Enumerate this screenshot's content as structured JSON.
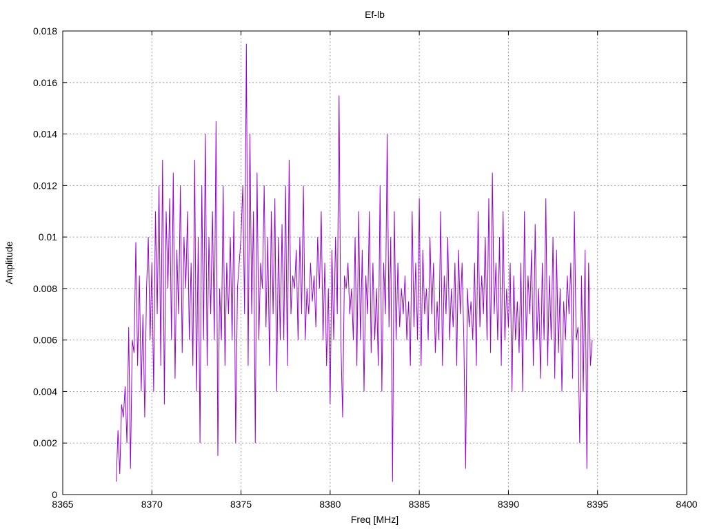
{
  "chart_data": {
    "type": "line",
    "title": "Ef-lb",
    "xlabel": "Freq [MHz]",
    "ylabel": "Amplitude",
    "xlim": [
      8365,
      8400
    ],
    "ylim": [
      0,
      0.018
    ],
    "x_ticks": [
      "8365",
      "8370",
      "8375",
      "8380",
      "8385",
      "8390",
      "8395",
      "8400"
    ],
    "y_ticks": [
      "0",
      "0.002",
      "0.004",
      "0.006",
      "0.008",
      "0.01",
      "0.012",
      "0.014",
      "0.016",
      "0.018"
    ],
    "grid": true,
    "series_color": "#9400d3",
    "series": [
      {
        "x_start": 8368.0,
        "x_step": 0.1,
        "values": [
          0.0005,
          0.0025,
          0.0008,
          0.0035,
          0.003,
          0.0042,
          0.002,
          0.0065,
          0.001,
          0.006,
          0.0055,
          0.0098,
          0.005,
          0.0085,
          0.004,
          0.007,
          0.003,
          0.008,
          0.01,
          0.006,
          0.009,
          0.004,
          0.011,
          0.007,
          0.012,
          0.005,
          0.013,
          0.0035,
          0.011,
          0.008,
          0.0115,
          0.006,
          0.0125,
          0.0045,
          0.0095,
          0.007,
          0.012,
          0.0055,
          0.01,
          0.008,
          0.011,
          0.006,
          0.009,
          0.005,
          0.013,
          0.004,
          0.01,
          0.002,
          0.012,
          0.006,
          0.014,
          0.005,
          0.01,
          0.007,
          0.011,
          0.006,
          0.0145,
          0.0015,
          0.008,
          0.006,
          0.012,
          0.005,
          0.009,
          0.007,
          0.01,
          0.006,
          0.011,
          0.002,
          0.008,
          0.009,
          0.01,
          0.012,
          0.007,
          0.0175,
          0.005,
          0.014,
          0.007,
          0.011,
          0.002,
          0.0125,
          0.006,
          0.009,
          0.008,
          0.012,
          0.0065,
          0.01,
          0.005,
          0.011,
          0.007,
          0.0115,
          0.004,
          0.01,
          0.006,
          0.0105,
          0.006,
          0.012,
          0.005,
          0.013,
          0.007,
          0.0085,
          0.008,
          0.0095,
          0.006,
          0.01,
          0.007,
          0.012,
          0.006,
          0.008,
          0.007,
          0.009,
          0.0075,
          0.0085,
          0.0065,
          0.01,
          0.008,
          0.011,
          0.006,
          0.009,
          0.005,
          0.008,
          0.0035,
          0.0095,
          0.006,
          0.01,
          0.007,
          0.0155,
          0.006,
          0.003,
          0.0085,
          0.008,
          0.009,
          0.007,
          0.008,
          0.006,
          0.01,
          0.005,
          0.011,
          0.006,
          0.0095,
          0.004,
          0.0085,
          0.007,
          0.011,
          0.0055,
          0.009,
          0.006,
          0.008,
          0.005,
          0.012,
          0.004,
          0.009,
          0.007,
          0.014,
          0.0065,
          0.01,
          0.0005,
          0.011,
          0.006,
          0.009,
          0.0065,
          0.008,
          0.007,
          0.0085,
          0.006,
          0.0075,
          0.005,
          0.011,
          0.0065,
          0.009,
          0.006,
          0.0115,
          0.005,
          0.0095,
          0.007,
          0.008,
          0.006,
          0.01,
          0.007,
          0.009,
          0.0055,
          0.0075,
          0.006,
          0.011,
          0.005,
          0.0085,
          0.007,
          0.01,
          0.006,
          0.008,
          0.0065,
          0.009,
          0.005,
          0.0095,
          0.007,
          0.009,
          0.006,
          0.001,
          0.008,
          0.0065,
          0.0075,
          0.006,
          0.009,
          0.005,
          0.011,
          0.0065,
          0.0085,
          0.007,
          0.01,
          0.006,
          0.0115,
          0.0055,
          0.0125,
          0.007,
          0.009,
          0.006,
          0.01,
          0.005,
          0.011,
          0.006,
          0.008,
          0.0065,
          0.009,
          0.004,
          0.0085,
          0.006,
          0.0075,
          0.0055,
          0.009,
          0.004,
          0.011,
          0.006,
          0.0085,
          0.007,
          0.0095,
          0.005,
          0.0105,
          0.006,
          0.008,
          0.0045,
          0.009,
          0.006,
          0.0115,
          0.005,
          0.0085,
          0.006,
          0.01,
          0.0045,
          0.0095,
          0.0055,
          0.008,
          0.004,
          0.0075,
          0.006,
          0.0085,
          0.007,
          0.009,
          0.0045,
          0.011,
          0.006,
          0.0065,
          0.002,
          0.0085,
          0.004,
          0.0095,
          0.001,
          0.009,
          0.005,
          0.006
        ]
      }
    ]
  }
}
